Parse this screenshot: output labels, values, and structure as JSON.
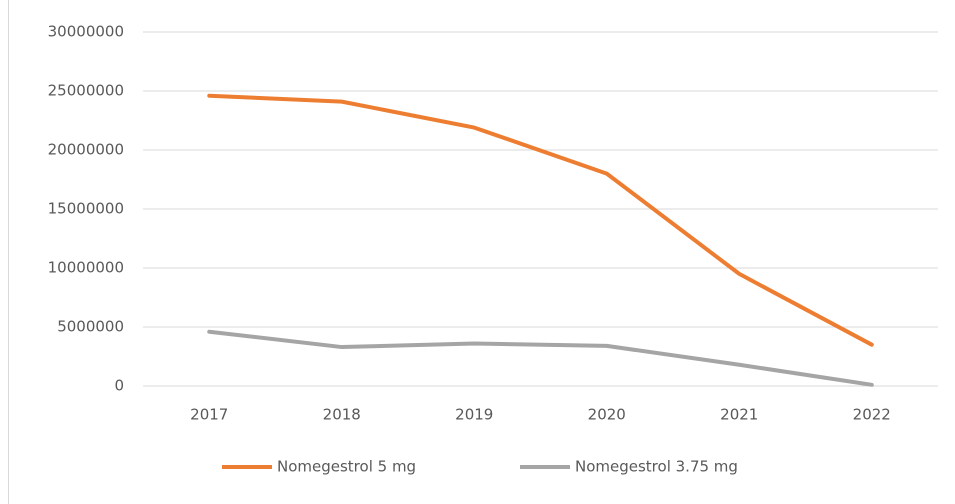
{
  "chart_data": {
    "type": "line",
    "categories": [
      "2017",
      "2018",
      "2019",
      "2020",
      "2021",
      "2022"
    ],
    "series": [
      {
        "name": "Nomegestrol 5 mg",
        "color": "#ed7d31",
        "values": [
          24600000,
          24100000,
          21900000,
          18000000,
          9500000,
          3500000
        ]
      },
      {
        "name": "Nomegestrol 3.75 mg",
        "color": "#a5a5a5",
        "values": [
          4600000,
          3300000,
          3600000,
          3400000,
          1800000,
          100000
        ]
      }
    ],
    "ylim": [
      0,
      30000000
    ],
    "yticks": [
      0,
      5000000,
      10000000,
      15000000,
      20000000,
      25000000,
      30000000
    ],
    "grid": true,
    "legend": "bottom"
  }
}
